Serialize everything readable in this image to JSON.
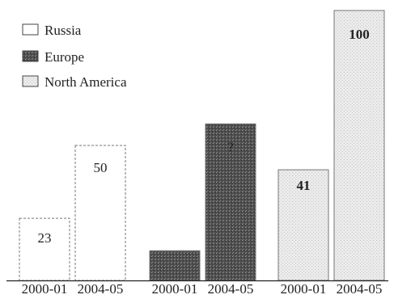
{
  "chart_data": {
    "type": "bar",
    "categories": [
      "2000-01",
      "2004-05"
    ],
    "series": [
      {
        "name": "Russia",
        "values": [
          23,
          50
        ],
        "data_labels": [
          "23",
          "50"
        ]
      },
      {
        "name": "Europe",
        "values": [
          11,
          58
        ],
        "data_labels": [
          "",
          "?"
        ]
      },
      {
        "name": "North America",
        "values": [
          41,
          100
        ],
        "data_labels": [
          "41",
          "100"
        ]
      }
    ],
    "title": "",
    "xlabel": "",
    "ylabel": "",
    "ylim": [
      0,
      100
    ],
    "grid": false,
    "legend": "top-left",
    "colors": {
      "Russia": "#ffffff",
      "Europe": "#5a5a5a",
      "North America": "#e6e6e6",
      "edge": "#777777",
      "axis": "#222222"
    }
  }
}
